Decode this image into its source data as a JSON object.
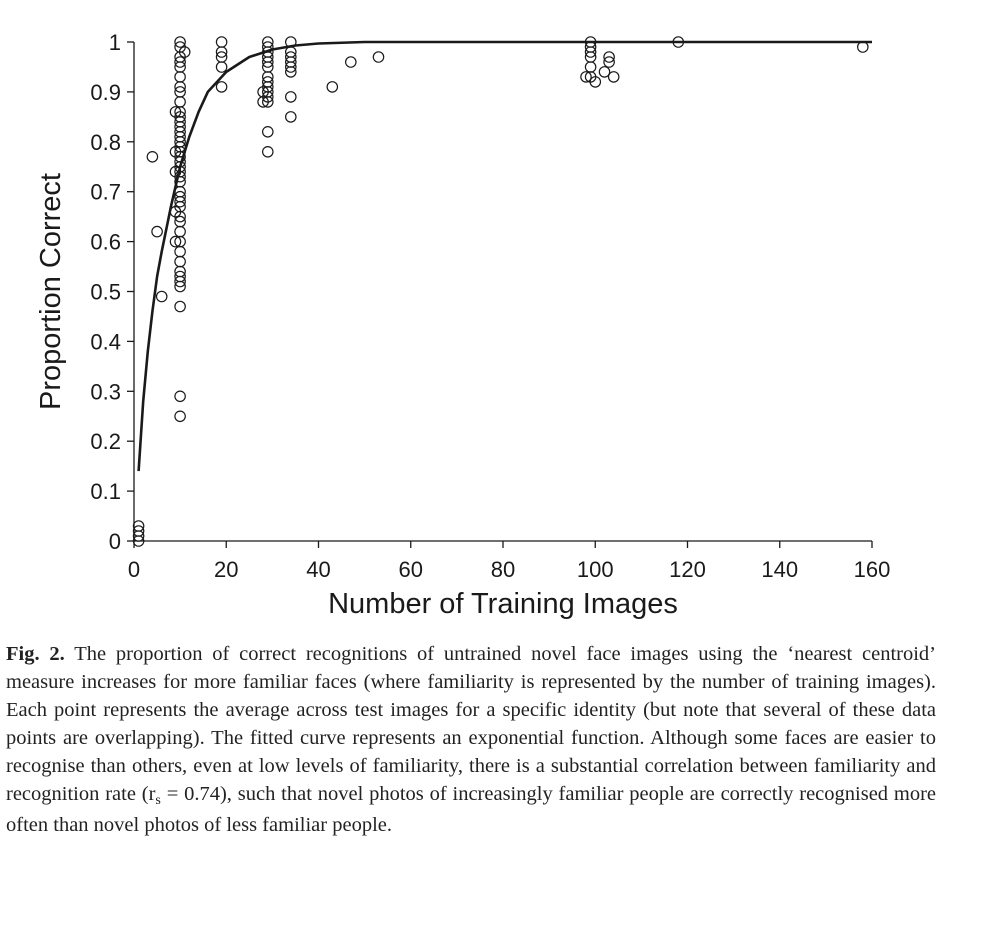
{
  "chart_data": {
    "type": "scatter",
    "xlabel": "Number of Training Images",
    "ylabel": "Proportion Correct",
    "xlim": [
      0,
      160
    ],
    "ylim": [
      0,
      1
    ],
    "xticks": [
      "0",
      "20",
      "40",
      "60",
      "80",
      "100",
      "120",
      "140",
      "160"
    ],
    "yticks": [
      "0",
      "0.1",
      "0.2",
      "0.3",
      "0.4",
      "0.5",
      "0.6",
      "0.7",
      "0.8",
      "0.9",
      "1"
    ],
    "grid": false,
    "points": [
      {
        "x": 1,
        "y": 0.03
      },
      {
        "x": 1,
        "y": 0.02
      },
      {
        "x": 1,
        "y": 0.01
      },
      {
        "x": 1,
        "y": 0.0
      },
      {
        "x": 4,
        "y": 0.77
      },
      {
        "x": 5,
        "y": 0.62
      },
      {
        "x": 6,
        "y": 0.49
      },
      {
        "x": 9,
        "y": 0.86
      },
      {
        "x": 9,
        "y": 0.78
      },
      {
        "x": 9,
        "y": 0.74
      },
      {
        "x": 9,
        "y": 0.66
      },
      {
        "x": 9,
        "y": 0.6
      },
      {
        "x": 10,
        "y": 1.0
      },
      {
        "x": 10,
        "y": 0.99
      },
      {
        "x": 10,
        "y": 0.97
      },
      {
        "x": 10,
        "y": 0.96
      },
      {
        "x": 10,
        "y": 0.95
      },
      {
        "x": 10,
        "y": 0.93
      },
      {
        "x": 10,
        "y": 0.91
      },
      {
        "x": 10,
        "y": 0.9
      },
      {
        "x": 10,
        "y": 0.88
      },
      {
        "x": 10,
        "y": 0.86
      },
      {
        "x": 10,
        "y": 0.85
      },
      {
        "x": 10,
        "y": 0.84
      },
      {
        "x": 10,
        "y": 0.83
      },
      {
        "x": 10,
        "y": 0.82
      },
      {
        "x": 10,
        "y": 0.81
      },
      {
        "x": 10,
        "y": 0.8
      },
      {
        "x": 10,
        "y": 0.79
      },
      {
        "x": 10,
        "y": 0.78
      },
      {
        "x": 10,
        "y": 0.77
      },
      {
        "x": 10,
        "y": 0.76
      },
      {
        "x": 10,
        "y": 0.75
      },
      {
        "x": 10,
        "y": 0.74
      },
      {
        "x": 10,
        "y": 0.73
      },
      {
        "x": 10,
        "y": 0.72
      },
      {
        "x": 10,
        "y": 0.7
      },
      {
        "x": 10,
        "y": 0.69
      },
      {
        "x": 10,
        "y": 0.68
      },
      {
        "x": 10,
        "y": 0.67
      },
      {
        "x": 10,
        "y": 0.65
      },
      {
        "x": 10,
        "y": 0.64
      },
      {
        "x": 10,
        "y": 0.62
      },
      {
        "x": 10,
        "y": 0.6
      },
      {
        "x": 10,
        "y": 0.58
      },
      {
        "x": 10,
        "y": 0.56
      },
      {
        "x": 10,
        "y": 0.54
      },
      {
        "x": 10,
        "y": 0.53
      },
      {
        "x": 10,
        "y": 0.52
      },
      {
        "x": 10,
        "y": 0.51
      },
      {
        "x": 10,
        "y": 0.47
      },
      {
        "x": 10,
        "y": 0.29
      },
      {
        "x": 10,
        "y": 0.25
      },
      {
        "x": 11,
        "y": 0.98
      },
      {
        "x": 19,
        "y": 1.0
      },
      {
        "x": 19,
        "y": 0.98
      },
      {
        "x": 19,
        "y": 0.97
      },
      {
        "x": 19,
        "y": 0.95
      },
      {
        "x": 19,
        "y": 0.91
      },
      {
        "x": 28,
        "y": 0.9
      },
      {
        "x": 28,
        "y": 0.88
      },
      {
        "x": 29,
        "y": 1.0
      },
      {
        "x": 29,
        "y": 0.99
      },
      {
        "x": 29,
        "y": 0.98
      },
      {
        "x": 29,
        "y": 0.97
      },
      {
        "x": 29,
        "y": 0.96
      },
      {
        "x": 29,
        "y": 0.95
      },
      {
        "x": 29,
        "y": 0.93
      },
      {
        "x": 29,
        "y": 0.92
      },
      {
        "x": 29,
        "y": 0.91
      },
      {
        "x": 29,
        "y": 0.9
      },
      {
        "x": 29,
        "y": 0.89
      },
      {
        "x": 29,
        "y": 0.88
      },
      {
        "x": 29,
        "y": 0.82
      },
      {
        "x": 29,
        "y": 0.78
      },
      {
        "x": 34,
        "y": 1.0
      },
      {
        "x": 34,
        "y": 0.98
      },
      {
        "x": 34,
        "y": 0.97
      },
      {
        "x": 34,
        "y": 0.96
      },
      {
        "x": 34,
        "y": 0.95
      },
      {
        "x": 34,
        "y": 0.94
      },
      {
        "x": 34,
        "y": 0.89
      },
      {
        "x": 34,
        "y": 0.85
      },
      {
        "x": 43,
        "y": 0.91
      },
      {
        "x": 47,
        "y": 0.96
      },
      {
        "x": 53,
        "y": 0.97
      },
      {
        "x": 99,
        "y": 1.0
      },
      {
        "x": 99,
        "y": 0.99
      },
      {
        "x": 99,
        "y": 0.98
      },
      {
        "x": 99,
        "y": 0.97
      },
      {
        "x": 99,
        "y": 0.95
      },
      {
        "x": 98,
        "y": 0.93
      },
      {
        "x": 99,
        "y": 0.93
      },
      {
        "x": 100,
        "y": 0.92
      },
      {
        "x": 102,
        "y": 0.94
      },
      {
        "x": 103,
        "y": 0.97
      },
      {
        "x": 103,
        "y": 0.96
      },
      {
        "x": 104,
        "y": 0.93
      },
      {
        "x": 118,
        "y": 1.0
      },
      {
        "x": 158,
        "y": 0.99
      }
    ],
    "fit_curve": {
      "x": [
        1,
        2,
        3,
        4,
        5,
        6,
        8,
        10,
        12,
        14,
        16,
        20,
        25,
        30,
        35,
        40,
        50,
        60,
        80,
        100,
        120,
        140,
        160
      ],
      "y": [
        0.14,
        0.28,
        0.38,
        0.46,
        0.53,
        0.58,
        0.67,
        0.75,
        0.81,
        0.86,
        0.9,
        0.94,
        0.97,
        0.985,
        0.993,
        0.997,
        1.0,
        1.0,
        1.0,
        1.0,
        1.0,
        1.0,
        1.0
      ]
    }
  },
  "caption": {
    "label": "Fig. 2.",
    "text_before_sub": " The proportion of correct recognitions of untrained novel face images using the ‘nearest centroid’ measure increases for more familiar faces (where familiarity is re­presented by the number of training images). Each point represents the average across test images for a specific identity (but note that several of these data points are over­lapping). The fitted curve represents an exponential function. Although some faces are easier to recognise than others, even at low levels of familiarity, there is a substantial correlation between familiarity and recognition rate (r",
    "subscript": "s",
    "text_after_sub": " = 0.74), such that novel photos of increasingly familiar people are correctly recognised more often than novel photos of less familiar people."
  }
}
